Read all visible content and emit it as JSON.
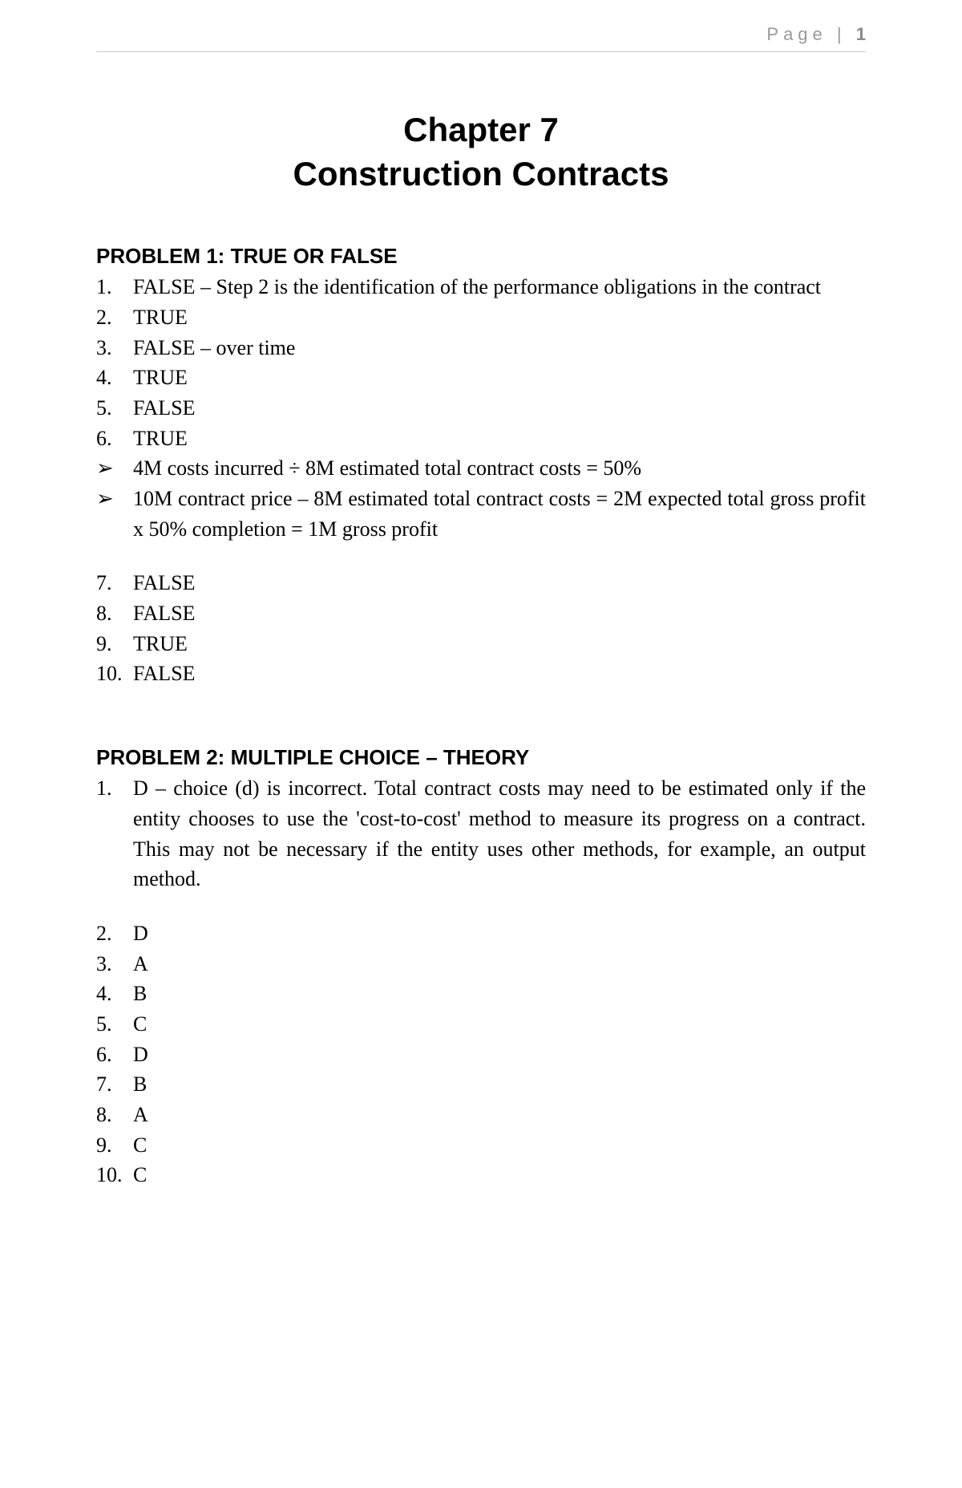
{
  "header": {
    "label": "Page",
    "separator": "|",
    "number": "1"
  },
  "chapter": {
    "line1": "Chapter 7",
    "line2": "Construction Contracts"
  },
  "problem1": {
    "heading": "PROBLEM 1: TRUE OR FALSE",
    "items": [
      {
        "num": "1.",
        "text": "FALSE – Step 2 is the identification of the performance obligations in the contract",
        "justify": true
      },
      {
        "num": "2.",
        "text": "TRUE"
      },
      {
        "num": "3.",
        "text": "FALSE – over time"
      },
      {
        "num": "4.",
        "text": "TRUE"
      },
      {
        "num": "5.",
        "text": "FALSE"
      },
      {
        "num": "6.",
        "text": "TRUE"
      }
    ],
    "bullets": [
      {
        "text": "4M costs incurred ÷ 8M estimated total contract costs = 50%"
      },
      {
        "text": "10M contract price – 8M estimated total contract costs = 2M expected total gross profit x 50% completion = 1M gross profit",
        "justify": true
      }
    ],
    "items2": [
      {
        "num": "7.",
        "text": "FALSE"
      },
      {
        "num": "8.",
        "text": "FALSE"
      },
      {
        "num": "9.",
        "text": "TRUE"
      },
      {
        "num": "10.",
        "text": "FALSE"
      }
    ]
  },
  "problem2": {
    "heading": "PROBLEM 2: MULTIPLE CHOICE – THEORY",
    "items": [
      {
        "num": "1.",
        "text": "D – choice (d) is incorrect. Total contract costs may need to be estimated only if the entity chooses to use the 'cost-to-cost' method to measure its progress on a contract. This may not be necessary if the entity uses other methods, for example, an output method.",
        "justify": true
      }
    ],
    "items2": [
      {
        "num": "2.",
        "text": "D"
      },
      {
        "num": "3.",
        "text": "A"
      },
      {
        "num": "4.",
        "text": "B"
      },
      {
        "num": "5.",
        "text": "C"
      },
      {
        "num": "6.",
        "text": "D"
      },
      {
        "num": "7.",
        "text": "B"
      },
      {
        "num": "8.",
        "text": "A"
      },
      {
        "num": "9.",
        "text": "C"
      },
      {
        "num": "10.",
        "text": "C"
      }
    ]
  },
  "bullet_marker": "➢"
}
